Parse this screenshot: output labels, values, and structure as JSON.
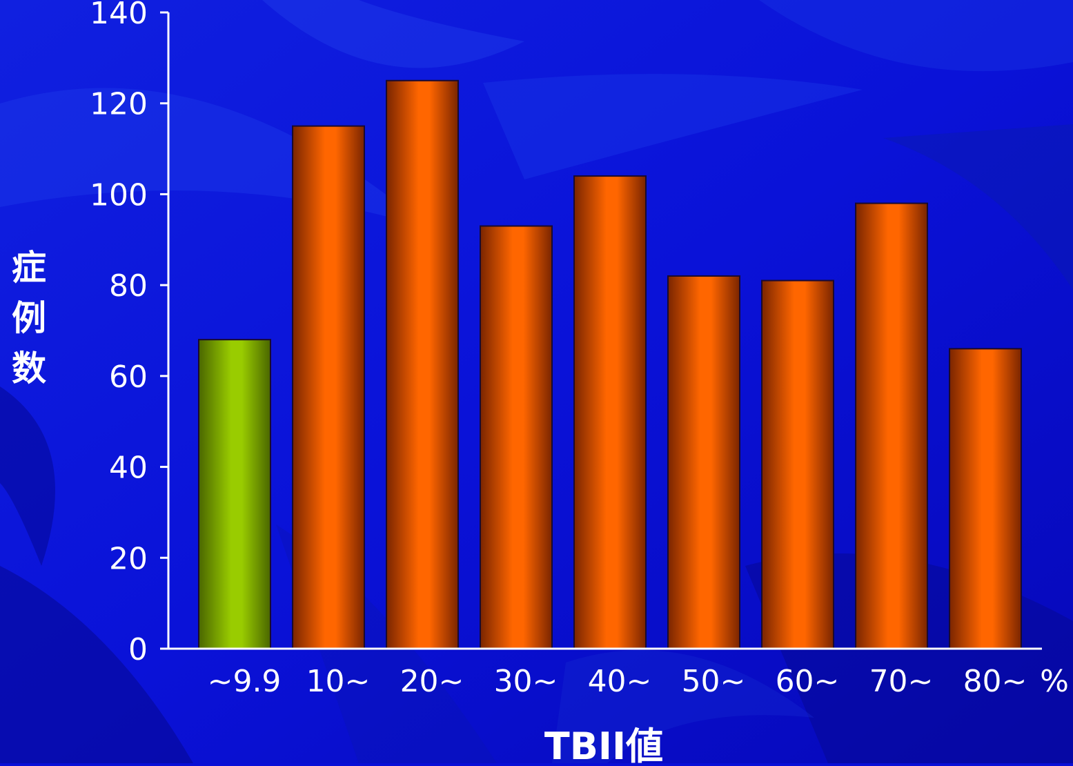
{
  "chart_data": {
    "type": "bar",
    "categories": [
      "~9.9",
      "10~",
      "20~",
      "30~",
      "40~",
      "50~",
      "60~",
      "70~",
      "80~"
    ],
    "values": [
      68,
      115,
      125,
      93,
      104,
      82,
      81,
      98,
      66
    ],
    "bar_colors": [
      "#99cc00",
      "#ff6600",
      "#ff6600",
      "#ff6600",
      "#ff6600",
      "#ff6600",
      "#ff6600",
      "#ff6600",
      "#ff6600"
    ],
    "ylim": [
      0,
      140
    ],
    "yticks": [
      0,
      20,
      40,
      60,
      80,
      100,
      120,
      140
    ],
    "ylabel": "症例数",
    "xlabel": "TBII値",
    "xunit": "%",
    "grid": false,
    "background_color": "#0a0fd6",
    "axis_color": "#ffffff",
    "label_color": "#ffffff"
  }
}
